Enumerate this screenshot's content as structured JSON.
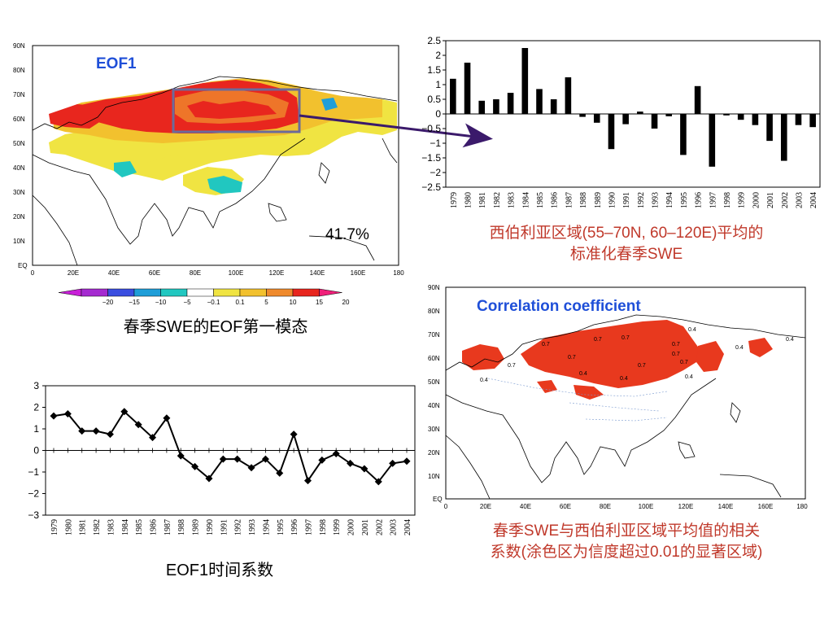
{
  "colors": {
    "accent_blue": "#1f4fd8",
    "caption_red": "#c0392b",
    "shade_red": "#e8391e",
    "box_gray": "#6b6b9a",
    "arrow": "#3b1a6b"
  },
  "eof_map": {
    "label": "EOF1",
    "percent": "41.7%",
    "lat_ticks": [
      "90N",
      "80N",
      "70N",
      "60N",
      "50N",
      "40N",
      "30N",
      "20N",
      "10N",
      "EQ"
    ],
    "lon_ticks": [
      "0",
      "20E",
      "40E",
      "60E",
      "80E",
      "100E",
      "120E",
      "140E",
      "160E",
      "180"
    ],
    "caption": "春季SWE的EOF第一模态"
  },
  "colorbar": {
    "labels": [
      "−20",
      "−15",
      "−10",
      "−5",
      "−0.1",
      "0.1",
      "5",
      "10",
      "15",
      "20"
    ],
    "colors": [
      "#a52ad0",
      "#3a4ee0",
      "#1f9ed8",
      "#21c7c0",
      "#ffffff",
      "#f0e442",
      "#f2c12e",
      "#ef8a2c",
      "#e8261e"
    ],
    "left_tip": "#c81fd8",
    "right_tip": "#f0207a"
  },
  "corr_map": {
    "label": "Correlation coefficient",
    "lat_ticks": [
      "90N",
      "80N",
      "70N",
      "60N",
      "50N",
      "40N",
      "30N",
      "20N",
      "10N",
      "EQ"
    ],
    "lon_ticks": [
      "0",
      "20E",
      "40E",
      "60E",
      "80E",
      "100E",
      "120E",
      "140E",
      "160E",
      "180"
    ],
    "contour_labels": [
      "0.7",
      "0.7",
      "0.7",
      "0.7",
      "0.7",
      "0.7",
      "0.7",
      "0.7",
      "0.7",
      "0.4",
      "0.4",
      "0.4",
      "0.4",
      "0.4",
      "0.4",
      "0.4"
    ],
    "caption_lines": [
      "春季SWE与西伯利亚区域平均值的相关",
      "系数(涂色区为信度超过0.01的显著区域)"
    ]
  },
  "bar_caption_lines": [
    "西伯利亚区域(55–70N, 60–120E)平均的",
    "标准化春季SWE"
  ],
  "line_caption": "EOF1时间系数",
  "chart_data": [
    {
      "type": "bar",
      "categories": [
        "1979",
        "1980",
        "1981",
        "1982",
        "1983",
        "1984",
        "1985",
        "1986",
        "1987",
        "1988",
        "1989",
        "1990",
        "1991",
        "1992",
        "1993",
        "1994",
        "1995",
        "1996",
        "1997",
        "1998",
        "1999",
        "2000",
        "2001",
        "2002",
        "2003",
        "2004"
      ],
      "values": [
        1.2,
        1.75,
        0.45,
        0.5,
        0.72,
        2.25,
        0.85,
        0.5,
        1.25,
        -0.1,
        -0.3,
        -1.2,
        -0.35,
        0.08,
        -0.5,
        -0.08,
        -1.4,
        0.95,
        -1.8,
        -0.05,
        -0.2,
        -0.38,
        -0.92,
        -1.6,
        -0.38,
        -0.45
      ],
      "ylim": [
        -2.5,
        2.5
      ],
      "yticks": [
        "2.5",
        "2",
        "1.5",
        "1",
        "0.5",
        "0",
        "−0.5",
        "−1",
        "−1.5",
        "−2",
        "−2.5"
      ],
      "ytick_values": [
        2.5,
        2,
        1.5,
        1,
        0.5,
        0,
        -0.5,
        -1,
        -1.5,
        -2,
        -2.5
      ]
    },
    {
      "type": "line",
      "categories": [
        "1979",
        "1980",
        "1981",
        "1982",
        "1983",
        "1984",
        "1985",
        "1986",
        "1987",
        "1988",
        "1989",
        "1990",
        "1991",
        "1992",
        "1993",
        "1994",
        "1995",
        "1996",
        "1997",
        "1998",
        "1999",
        "2000",
        "2001",
        "2002",
        "2003",
        "2004"
      ],
      "values": [
        1.6,
        1.7,
        0.9,
        0.9,
        0.75,
        1.8,
        1.2,
        0.6,
        1.5,
        -0.25,
        -0.75,
        -1.3,
        -0.4,
        -0.4,
        -0.8,
        -0.4,
        -1.05,
        0.75,
        -1.4,
        -0.45,
        -0.15,
        -0.6,
        -0.85,
        -1.45,
        -0.6,
        -0.5
      ],
      "ylim": [
        -3,
        3
      ],
      "yticks": [
        "3",
        "2",
        "1",
        "0",
        "−1",
        "−2",
        "−3"
      ],
      "ytick_values": [
        3,
        2,
        1,
        0,
        -1,
        -2,
        -3
      ]
    }
  ]
}
